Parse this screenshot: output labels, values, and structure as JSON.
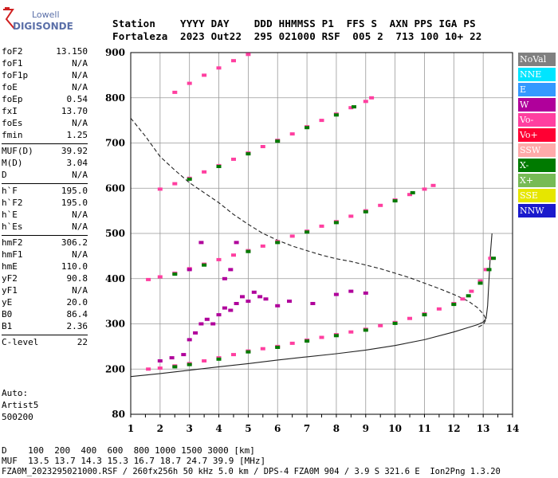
{
  "logo": {
    "line1": "Lowell",
    "line2": "DIGISONDE"
  },
  "header": {
    "line1": "Station    YYYY DAY    DDD HHMMSS P1  FFS S  AXN PPS IGA PS",
    "line2": "Fortaleza  2023 Out22  295 021000 RSF  005 2  713 100 10+ 22"
  },
  "params": [
    [
      {
        "label": "foF2",
        "value": "13.150"
      },
      {
        "label": "foF1",
        "value": "N/A"
      },
      {
        "label": "foF1p",
        "value": "N/A"
      },
      {
        "label": "foE",
        "value": "N/A"
      },
      {
        "label": "foEp",
        "value": "0.54"
      },
      {
        "label": "fxI",
        "value": "13.70"
      },
      {
        "label": "foEs",
        "value": "N/A"
      },
      {
        "label": "fmin",
        "value": "1.25"
      }
    ],
    [
      {
        "label": "MUF(D)",
        "value": "39.92"
      },
      {
        "label": "M(D)",
        "value": "3.04"
      },
      {
        "label": "D",
        "value": "N/A"
      }
    ],
    [
      {
        "label": "h`F",
        "value": "195.0"
      },
      {
        "label": "h`F2",
        "value": "195.0"
      },
      {
        "label": "h`E",
        "value": "N/A"
      },
      {
        "label": "h`Es",
        "value": "N/A"
      }
    ],
    [
      {
        "label": "hmF2",
        "value": "306.2"
      },
      {
        "label": "hmF1",
        "value": "N/A"
      },
      {
        "label": "hmE",
        "value": "110.0"
      },
      {
        "label": "yF2",
        "value": "90.8"
      },
      {
        "label": "yF1",
        "value": "N/A"
      },
      {
        "label": "yE",
        "value": "20.0"
      },
      {
        "label": "B0",
        "value": "86.4"
      },
      {
        "label": "B1",
        "value": "2.36"
      }
    ],
    [
      {
        "label": "C-level",
        "value": "22"
      }
    ]
  ],
  "auto": {
    "line1": "Auto:",
    "line2": "Artist5",
    "line3": "500200"
  },
  "footer": {
    "line1": "D    100  200  400  600  800 1000 1500 3000 [km]",
    "line2": "MUF  13.5 13.7 14.3 15.3 16.7 18.7 24.7 39.9 [MHz]",
    "line3": "FZA0M_2023295021000.RSF / 260fx256h 50 kHz 5.0 km / DPS-4 FZA0M 904 / 3.9 S 321.6 E  Ion2Png 1.3.20"
  },
  "legend": [
    {
      "label": "NoVal",
      "color": "#808080"
    },
    {
      "label": "NNE",
      "color": "#00e5ff"
    },
    {
      "label": "E",
      "color": "#3399ff"
    },
    {
      "label": "W",
      "color": "#b0009b"
    },
    {
      "label": "Vo-",
      "color": "#ff3fa0"
    },
    {
      "label": "Vo+",
      "color": "#ff0033"
    },
    {
      "label": "SSW",
      "color": "#ffaaaa"
    },
    {
      "label": "X-",
      "color": "#007a00"
    },
    {
      "label": "X+",
      "color": "#77bb55"
    },
    {
      "label": "SSE",
      "color": "#e6e600"
    },
    {
      "label": "NNW",
      "color": "#1a1acc"
    }
  ],
  "chart_data": {
    "type": "scatter",
    "xlabel": "",
    "ylabel": "",
    "xlim": [
      1,
      14
    ],
    "xticks": [
      1,
      2,
      3,
      4,
      5,
      6,
      7,
      8,
      9,
      10,
      11,
      12,
      13,
      14
    ],
    "yticks": [
      80,
      200,
      300,
      400,
      500,
      600,
      700,
      800,
      900
    ],
    "ysegments": [
      {
        "from": 80,
        "to": 200,
        "span": 1
      },
      {
        "from": 200,
        "to": 900,
        "span": 7
      }
    ],
    "grid": true,
    "series": [
      {
        "name": "Vo-",
        "color": "#ff3fa0",
        "points": [
          [
            1.6,
            200
          ],
          [
            2.0,
            202
          ],
          [
            2.5,
            207
          ],
          [
            3.0,
            212
          ],
          [
            3.5,
            218
          ],
          [
            4.0,
            225
          ],
          [
            4.5,
            232
          ],
          [
            5.0,
            240
          ],
          [
            5.5,
            245
          ],
          [
            6.0,
            250
          ],
          [
            6.5,
            257
          ],
          [
            7.0,
            264
          ],
          [
            7.5,
            270
          ],
          [
            8.0,
            276
          ],
          [
            8.5,
            282
          ],
          [
            9.0,
            288
          ],
          [
            9.5,
            296
          ],
          [
            10.0,
            303
          ],
          [
            10.5,
            312
          ],
          [
            11.0,
            322
          ],
          [
            11.5,
            333
          ],
          [
            12.0,
            345
          ],
          [
            12.3,
            355
          ],
          [
            12.6,
            372
          ],
          [
            12.9,
            395
          ],
          [
            13.1,
            420
          ],
          [
            13.25,
            445
          ]
        ]
      },
      {
        "name": "Vo-",
        "color": "#ff3fa0",
        "points": [
          [
            1.6,
            398
          ],
          [
            2.0,
            404
          ],
          [
            2.5,
            412
          ],
          [
            3.0,
            422
          ],
          [
            3.5,
            432
          ],
          [
            4.0,
            442
          ],
          [
            4.5,
            452
          ],
          [
            5.0,
            462
          ],
          [
            5.5,
            472
          ],
          [
            6.0,
            482
          ],
          [
            6.5,
            494
          ],
          [
            7.0,
            505
          ],
          [
            7.5,
            516
          ],
          [
            8.0,
            526
          ],
          [
            8.5,
            538
          ],
          [
            9.0,
            550
          ],
          [
            9.5,
            562
          ],
          [
            10.0,
            574
          ],
          [
            10.5,
            586
          ],
          [
            11.0,
            598
          ],
          [
            11.3,
            606
          ]
        ]
      },
      {
        "name": "Vo-",
        "color": "#ff3fa0",
        "points": [
          [
            2.0,
            598
          ],
          [
            2.5,
            610
          ],
          [
            3.0,
            622
          ],
          [
            3.5,
            636
          ],
          [
            4.0,
            650
          ],
          [
            4.5,
            664
          ],
          [
            5.0,
            678
          ],
          [
            5.5,
            692
          ],
          [
            6.0,
            706
          ],
          [
            6.5,
            720
          ],
          [
            7.0,
            736
          ],
          [
            7.5,
            750
          ],
          [
            8.0,
            764
          ],
          [
            8.5,
            778
          ],
          [
            9.0,
            792
          ],
          [
            9.2,
            800
          ]
        ]
      },
      {
        "name": "Vo-",
        "color": "#ff3fa0",
        "points": [
          [
            2.5,
            812
          ],
          [
            3.0,
            832
          ],
          [
            3.5,
            850
          ],
          [
            4.0,
            866
          ],
          [
            4.5,
            882
          ],
          [
            5.0,
            896
          ]
        ]
      },
      {
        "name": "X-",
        "color": "#007a00",
        "points": [
          [
            2.5,
            205
          ],
          [
            3.0,
            210
          ],
          [
            4.0,
            222
          ],
          [
            5.0,
            238
          ],
          [
            6.0,
            248
          ],
          [
            7.0,
            262
          ],
          [
            8.0,
            274
          ],
          [
            9.0,
            286
          ],
          [
            10.0,
            301
          ],
          [
            11.0,
            320
          ],
          [
            12.0,
            343
          ],
          [
            12.5,
            362
          ],
          [
            12.9,
            390
          ],
          [
            13.2,
            420
          ],
          [
            13.35,
            445
          ]
        ]
      },
      {
        "name": "X-",
        "color": "#007a00",
        "points": [
          [
            2.5,
            410
          ],
          [
            3.5,
            430
          ],
          [
            5.0,
            460
          ],
          [
            6.0,
            480
          ],
          [
            7.0,
            503
          ],
          [
            8.0,
            524
          ],
          [
            9.0,
            548
          ],
          [
            10.0,
            572
          ],
          [
            10.6,
            590
          ]
        ]
      },
      {
        "name": "X-",
        "color": "#007a00",
        "points": [
          [
            3.0,
            620
          ],
          [
            4.0,
            648
          ],
          [
            5.0,
            676
          ],
          [
            6.0,
            704
          ],
          [
            7.0,
            734
          ],
          [
            8.0,
            762
          ],
          [
            8.6,
            780
          ]
        ]
      },
      {
        "name": "W",
        "color": "#b0009b",
        "points": [
          [
            2.0,
            218
          ],
          [
            2.4,
            225
          ],
          [
            2.8,
            232
          ],
          [
            3.0,
            265
          ],
          [
            3.2,
            280
          ],
          [
            3.4,
            300
          ],
          [
            3.6,
            310
          ],
          [
            3.8,
            300
          ],
          [
            4.0,
            320
          ],
          [
            4.2,
            335
          ],
          [
            4.4,
            330
          ],
          [
            4.6,
            345
          ],
          [
            4.8,
            360
          ],
          [
            5.0,
            350
          ],
          [
            5.2,
            370
          ],
          [
            5.4,
            360
          ],
          [
            5.6,
            355
          ],
          [
            6.0,
            340
          ],
          [
            6.4,
            350
          ],
          [
            7.2,
            345
          ],
          [
            8.0,
            365
          ],
          [
            8.5,
            372
          ],
          [
            9.0,
            368
          ],
          [
            4.2,
            400
          ],
          [
            4.4,
            420
          ],
          [
            4.6,
            480
          ],
          [
            3.0,
            420
          ],
          [
            3.4,
            480
          ]
        ]
      }
    ],
    "lines": [
      {
        "style": "solid",
        "points": [
          [
            1.0,
            180
          ],
          [
            2.0,
            188
          ],
          [
            3.0,
            197
          ],
          [
            4.0,
            205
          ],
          [
            5.0,
            212
          ],
          [
            6.0,
            220
          ],
          [
            7.0,
            227
          ],
          [
            8.0,
            234
          ],
          [
            9.0,
            242
          ],
          [
            10.0,
            252
          ],
          [
            11.0,
            265
          ],
          [
            12.0,
            282
          ],
          [
            12.5,
            292
          ],
          [
            12.8,
            298
          ],
          [
            13.0,
            304
          ],
          [
            13.1,
            312
          ],
          [
            13.15,
            340
          ],
          [
            13.2,
            400
          ],
          [
            13.25,
            460
          ],
          [
            13.3,
            500
          ]
        ]
      },
      {
        "style": "dashed",
        "points": [
          [
            1.0,
            755
          ],
          [
            1.5,
            715
          ],
          [
            2.0,
            670
          ],
          [
            2.5,
            640
          ],
          [
            3.0,
            612
          ],
          [
            3.5,
            590
          ],
          [
            4.0,
            568
          ],
          [
            4.5,
            542
          ],
          [
            5.0,
            520
          ],
          [
            5.5,
            500
          ],
          [
            6.0,
            485
          ],
          [
            6.5,
            472
          ],
          [
            7.0,
            462
          ],
          [
            7.5,
            452
          ],
          [
            8.0,
            444
          ],
          [
            8.5,
            438
          ],
          [
            9.0,
            430
          ],
          [
            9.5,
            422
          ],
          [
            10.0,
            412
          ],
          [
            10.5,
            402
          ],
          [
            11.0,
            390
          ],
          [
            11.5,
            378
          ],
          [
            12.0,
            365
          ],
          [
            12.5,
            350
          ],
          [
            12.8,
            336
          ],
          [
            13.0,
            322
          ],
          [
            13.1,
            310
          ],
          [
            13.0,
            298
          ],
          [
            12.8,
            292
          ]
        ]
      }
    ]
  }
}
